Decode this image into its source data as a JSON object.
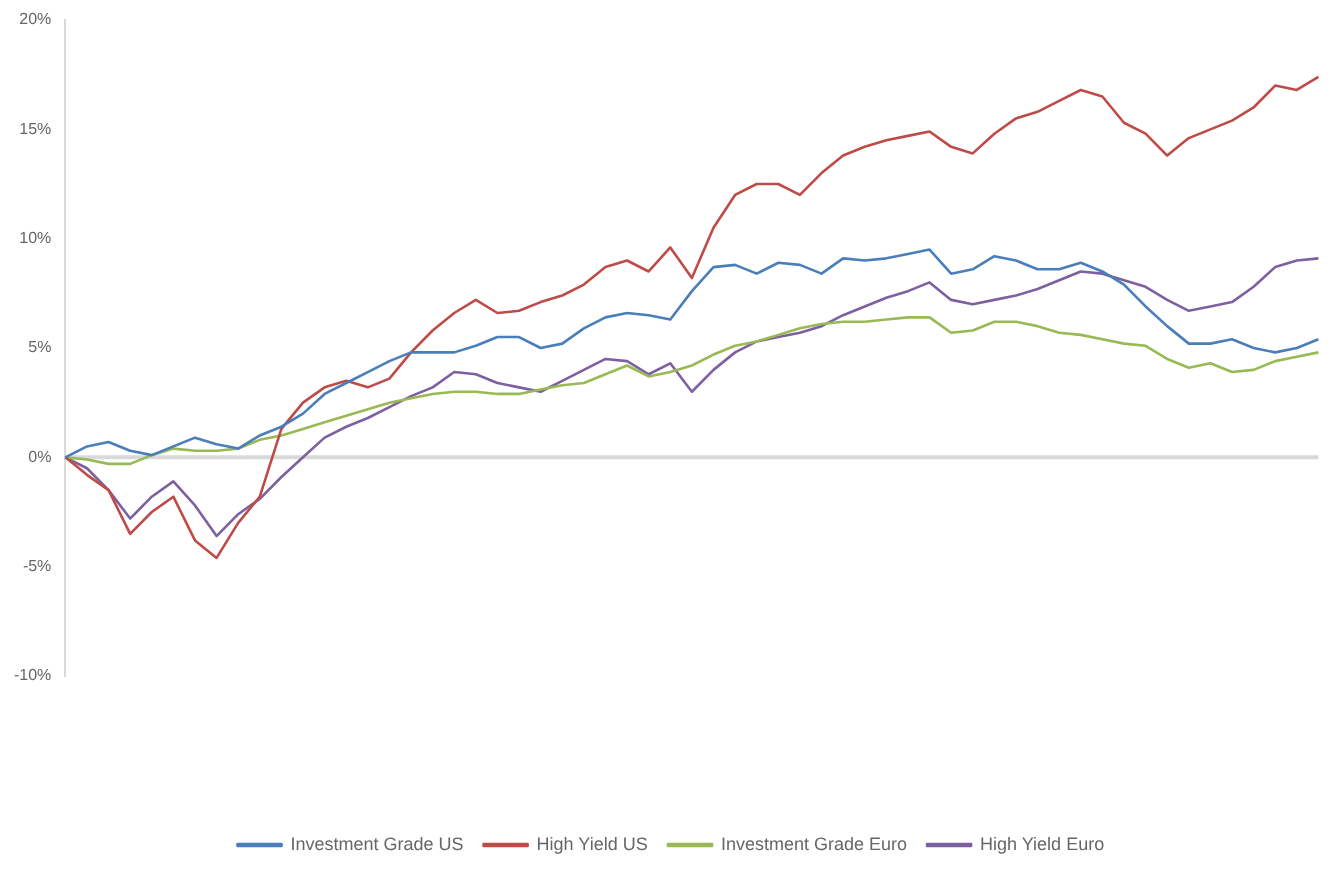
{
  "chart_data": {
    "type": "line",
    "categories": [
      null,
      null,
      null,
      null,
      null,
      null,
      null,
      null,
      null,
      null,
      null,
      null,
      null,
      null,
      null,
      null,
      null,
      null,
      null,
      null,
      null,
      null,
      null,
      null,
      null,
      null,
      null,
      null,
      null,
      null,
      null,
      null,
      null,
      null,
      null,
      null,
      null,
      null,
      null,
      null,
      null,
      null,
      null,
      null,
      null,
      null,
      null,
      null,
      null,
      null,
      null,
      null,
      null,
      null,
      null,
      null,
      null,
      null,
      null
    ],
    "series": [
      {
        "name": "Investment Grade US",
        "color": "#4a7ebb",
        "values": [
          0,
          0.5,
          0.7,
          0.3,
          0.1,
          0.5,
          0.9,
          0.6,
          0.4,
          1.0,
          1.4,
          2.0,
          2.9,
          3.4,
          3.9,
          4.4,
          4.8,
          4.8,
          4.8,
          5.1,
          5.5,
          5.5,
          5.0,
          5.2,
          5.9,
          6.4,
          6.6,
          6.5,
          6.3,
          7.6,
          8.7,
          8.8,
          8.4,
          8.9,
          8.8,
          8.4,
          9.1,
          9.0,
          9.1,
          9.3,
          9.5,
          8.4,
          8.6,
          9.2,
          9.0,
          8.6,
          8.6,
          8.9,
          8.5,
          7.9,
          6.9,
          6.0,
          5.2,
          5.2,
          5.4,
          5.0,
          4.8,
          5.0,
          5.4
        ]
      },
      {
        "name": "High Yield US",
        "color": "#be4b48",
        "values": [
          0,
          -0.8,
          -1.5,
          -3.5,
          -2.5,
          -1.8,
          -3.8,
          -4.6,
          -3,
          -1.8,
          1.3,
          2.5,
          3.2,
          3.5,
          3.2,
          3.6,
          4.8,
          5.8,
          6.6,
          7.2,
          6.6,
          6.7,
          7.1,
          7.4,
          7.9,
          8.7,
          9.0,
          8.5,
          9.6,
          8.2,
          10.5,
          12.0,
          12.5,
          12.5,
          12.0,
          13.0,
          13.8,
          14.2,
          14.5,
          14.7,
          14.9,
          14.2,
          13.9,
          14.8,
          15.5,
          15.8,
          16.3,
          16.8,
          16.5,
          15.3,
          14.8,
          13.8,
          14.6,
          15.0,
          15.4,
          16.0,
          17.0,
          16.8,
          17.4
        ]
      },
      {
        "name": "Investment Grade Euro",
        "color": "#98b954",
        "values": [
          0,
          -0.1,
          -0.3,
          -0.3,
          0.1,
          0.4,
          0.3,
          0.3,
          0.4,
          0.8,
          1.0,
          1.3,
          1.6,
          1.9,
          2.2,
          2.5,
          2.7,
          2.9,
          3.0,
          3.0,
          2.9,
          2.9,
          3.1,
          3.3,
          3.4,
          3.8,
          4.2,
          3.7,
          3.9,
          4.2,
          4.7,
          5.1,
          5.3,
          5.6,
          5.9,
          6.1,
          6.2,
          6.2,
          6.3,
          6.4,
          6.4,
          5.7,
          5.8,
          6.2,
          6.2,
          6.0,
          5.7,
          5.6,
          5.4,
          5.2,
          5.1,
          4.5,
          4.1,
          4.3,
          3.9,
          4.0,
          4.4,
          4.6,
          4.8
        ]
      },
      {
        "name": "High Yield Euro",
        "color": "#7d60a0",
        "values": [
          0,
          -0.5,
          -1.5,
          -2.8,
          -1.8,
          -1.1,
          -2.2,
          -3.6,
          -2.6,
          -1.9,
          -0.9,
          0,
          0.9,
          1.4,
          1.8,
          2.3,
          2.8,
          3.2,
          3.9,
          3.8,
          3.4,
          3.2,
          3.0,
          3.5,
          4.0,
          4.5,
          4.4,
          3.8,
          4.3,
          3.0,
          4.0,
          4.8,
          5.3,
          5.5,
          5.7,
          6.0,
          6.5,
          6.9,
          7.3,
          7.6,
          8.0,
          7.2,
          7.0,
          7.2,
          7.4,
          7.7,
          8.1,
          8.5,
          8.4,
          8.1,
          7.8,
          7.2,
          6.7,
          6.9,
          7.1,
          7.8,
          8.7,
          9.0,
          9.1
        ]
      }
    ],
    "ylim": [
      -10,
      20
    ],
    "yticks": [
      {
        "value": -10,
        "label": "-10%"
      },
      {
        "value": -5,
        "label": "-5%"
      },
      {
        "value": 0,
        "label": "0%"
      },
      {
        "value": 5,
        "label": "5%"
      },
      {
        "value": 10,
        "label": "10%"
      },
      {
        "value": 15,
        "label": "15%"
      },
      {
        "value": 20,
        "label": "20%"
      }
    ],
    "ref_lines": [
      {
        "axis": "y",
        "value": 0,
        "color": "#d9d9d9"
      }
    ],
    "grid": false,
    "legend": "bottom",
    "marker": "none",
    "line_style": "solid"
  }
}
